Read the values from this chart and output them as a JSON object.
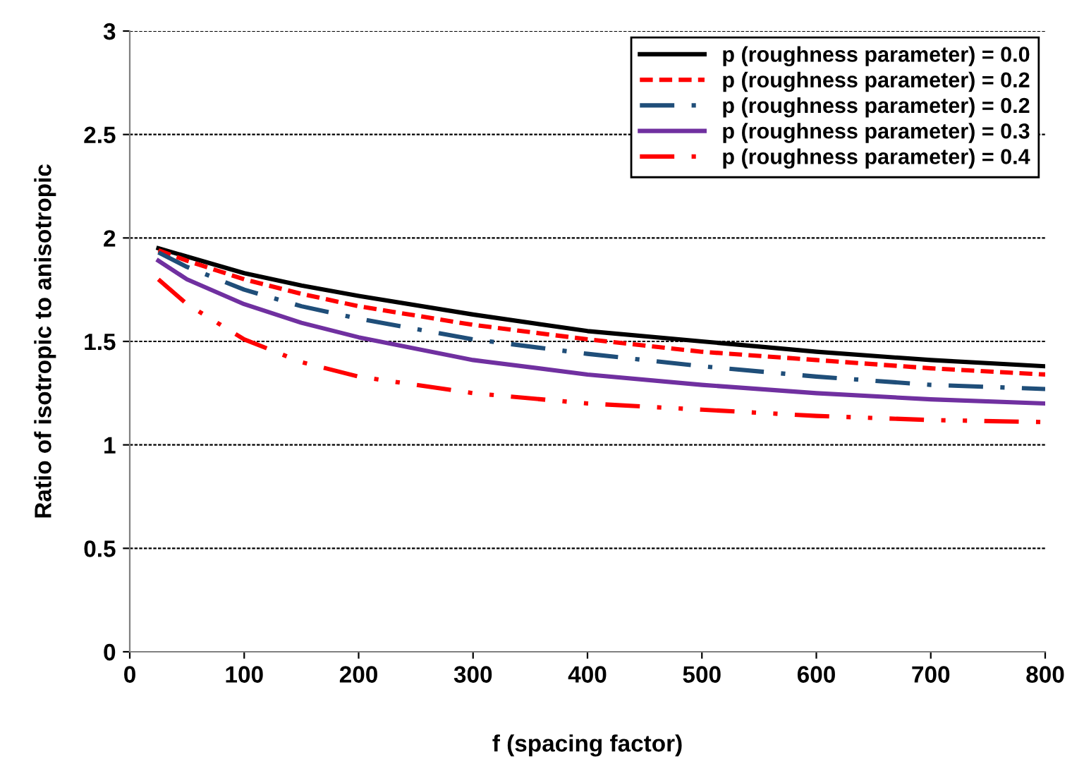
{
  "chart_data": {
    "type": "line",
    "xlabel": "f (spacing factor)",
    "ylabel": "Ratio of isotropic to anisotropic",
    "x": [
      25,
      50,
      100,
      150,
      200,
      300,
      400,
      500,
      600,
      700,
      800
    ],
    "series": [
      {
        "name": "p (roughness parameter) = 0.0",
        "color": "#000000",
        "line_style": "solid",
        "values": [
          1.95,
          1.91,
          1.83,
          1.77,
          1.72,
          1.63,
          1.55,
          1.5,
          1.45,
          1.41,
          1.38
        ]
      },
      {
        "name": "p (roughness parameter) = 0.2",
        "color": "#ff0000",
        "line_style": "dashed",
        "values": [
          1.94,
          1.89,
          1.8,
          1.73,
          1.67,
          1.58,
          1.51,
          1.45,
          1.41,
          1.37,
          1.34
        ]
      },
      {
        "name": "p (roughness parameter) = 0.2",
        "color": "#1f4e79",
        "line_style": "dashdot",
        "values": [
          1.93,
          1.86,
          1.75,
          1.67,
          1.61,
          1.51,
          1.44,
          1.38,
          1.33,
          1.29,
          1.27
        ]
      },
      {
        "name": "p (roughness parameter) = 0.3",
        "color": "#7030a0",
        "line_style": "solid",
        "values": [
          1.89,
          1.8,
          1.68,
          1.59,
          1.52,
          1.41,
          1.34,
          1.29,
          1.25,
          1.22,
          1.2
        ]
      },
      {
        "name": "p (roughness parameter) = 0.4",
        "color": "#ff0000",
        "line_style": "dashdotdot",
        "values": [
          1.8,
          1.68,
          1.51,
          1.4,
          1.33,
          1.25,
          1.2,
          1.17,
          1.14,
          1.12,
          1.11
        ]
      }
    ],
    "xlim": [
      0,
      800
    ],
    "xticks": [
      0,
      100,
      200,
      300,
      400,
      500,
      600,
      700,
      800
    ],
    "ylim": [
      0,
      3
    ],
    "yticks": [
      0,
      0.5,
      1,
      1.5,
      2,
      2.5,
      3
    ],
    "grid": "y",
    "legend": "top right",
    "marker": "none"
  }
}
